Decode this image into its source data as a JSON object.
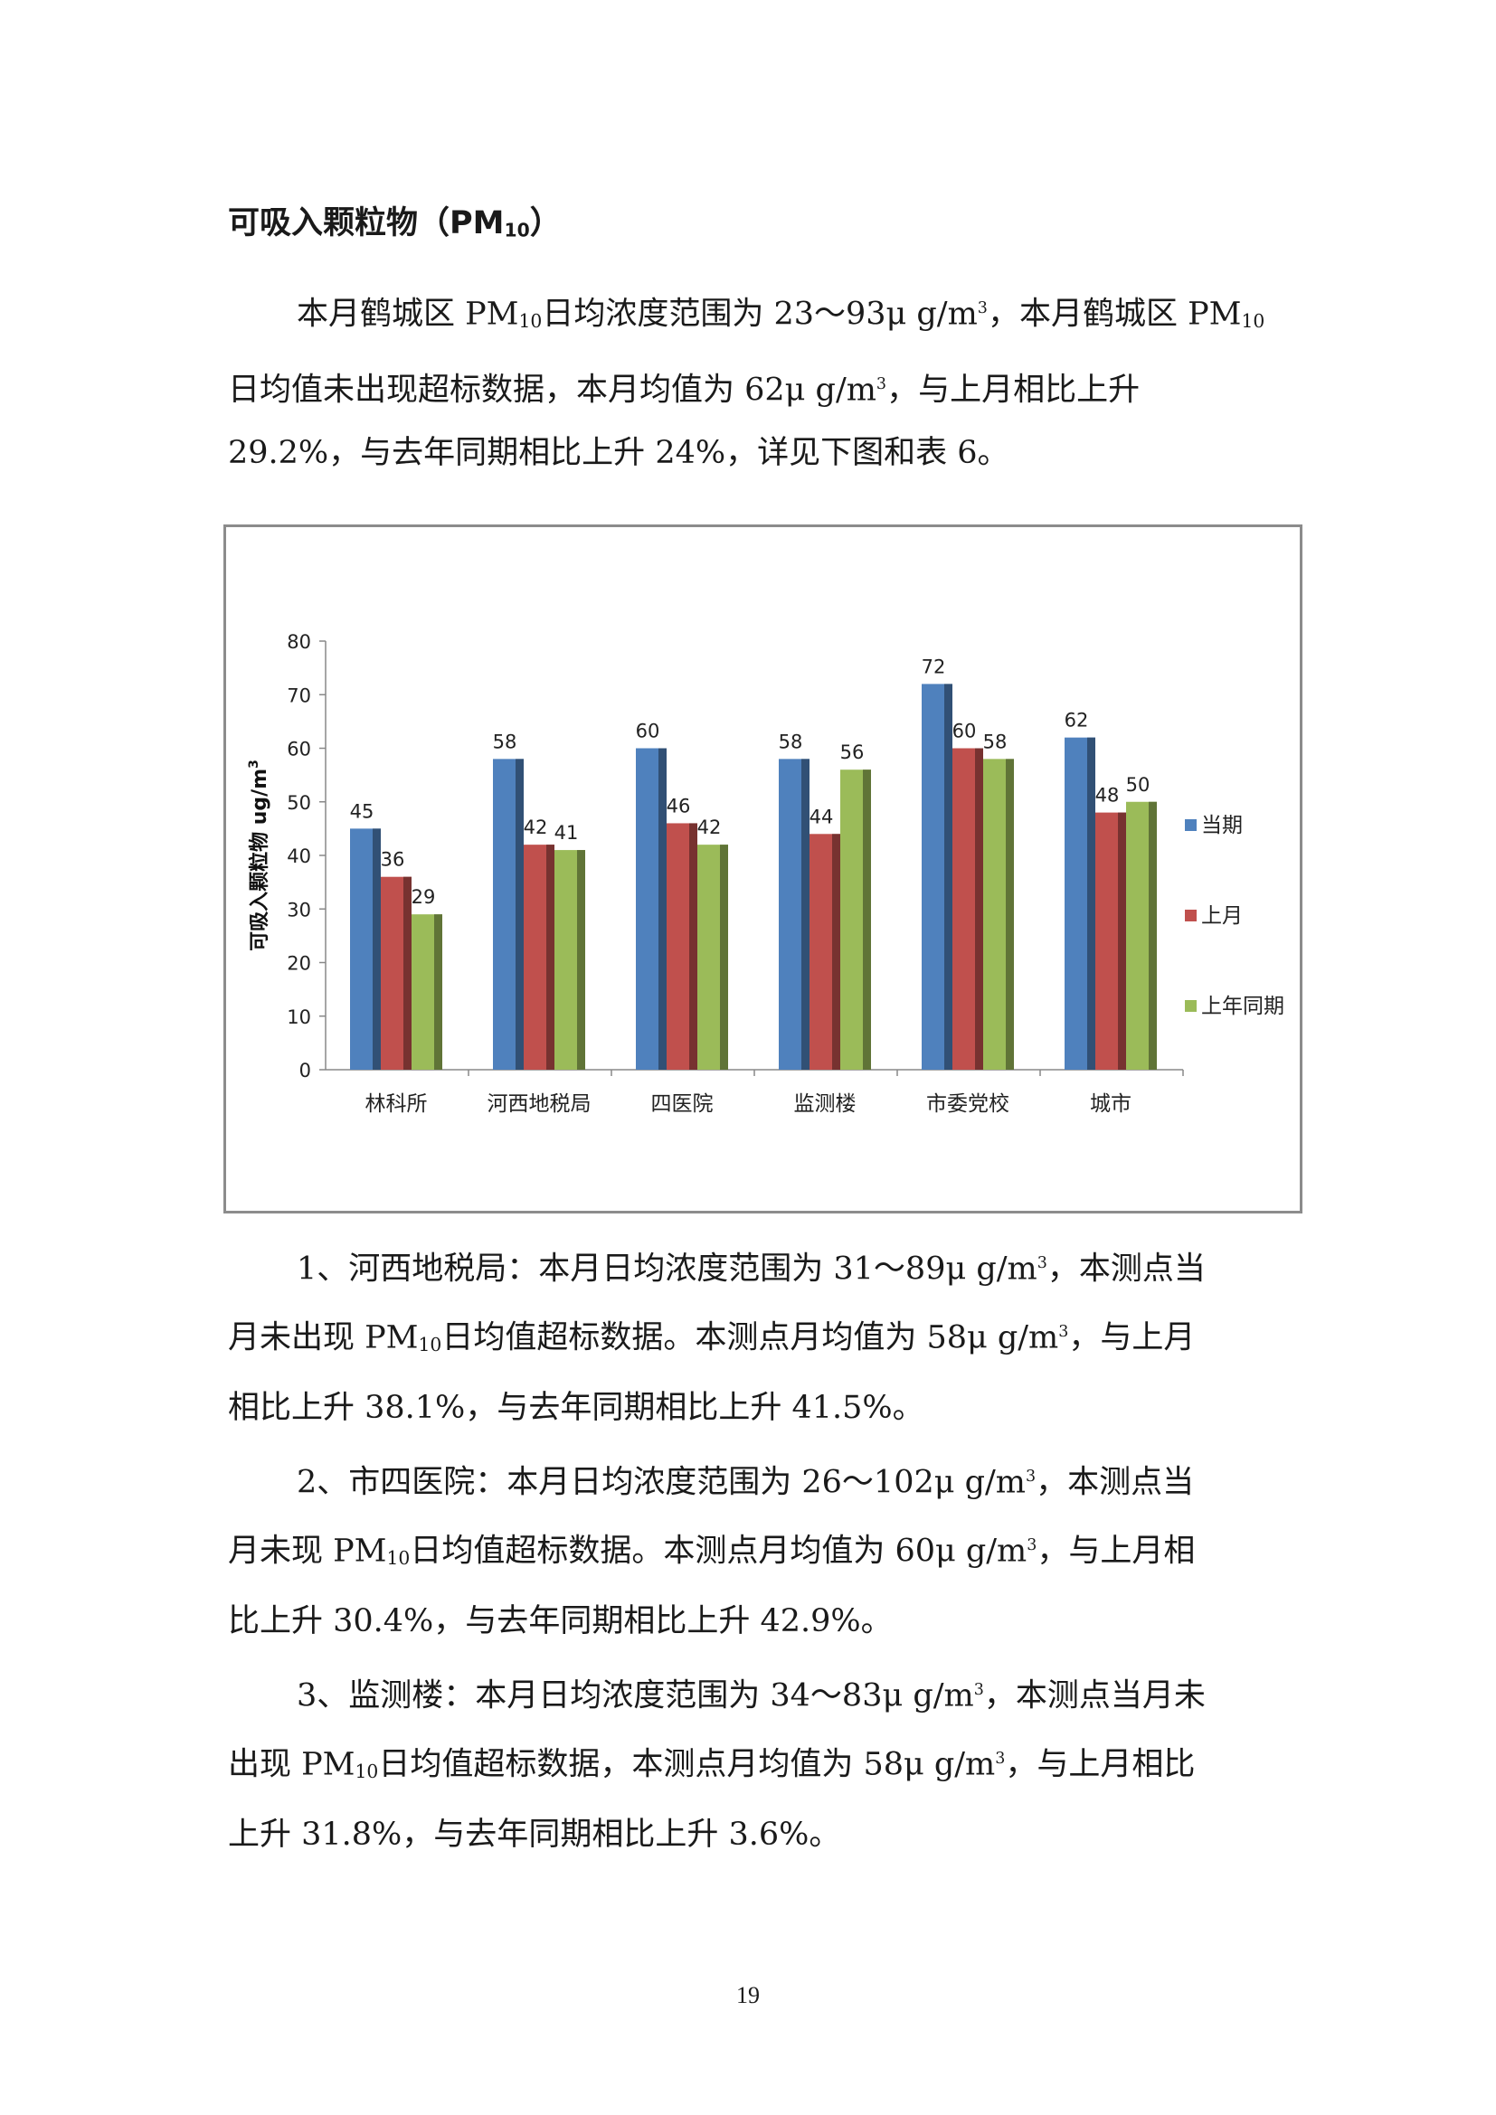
{
  "heading": {
    "text": "可吸入颗粒物（PM",
    "sub": "10",
    "close": "）"
  },
  "paragraphs": {
    "intro": [
      [
        "本月鹤城区 PM",
        {
          "sub": "10"
        },
        "日均浓度范围为 23～93μ g/m",
        {
          "sup": "3"
        },
        "，本月鹤城区 PM",
        {
          "sub": "10"
        }
      ],
      [
        "日均值未出现超标数据，本月均值为 62μ g/m",
        {
          "sup": "3"
        },
        "，与上月相比上升"
      ],
      [
        "29.2%，与去年同期相比上升 24%，详见下图和表 6。"
      ]
    ],
    "item1": [
      [
        "1、河西地税局：本月日均浓度范围为 31～89μ g/m",
        {
          "sup": "3"
        },
        "，本测点当"
      ],
      [
        "月未出现 PM",
        {
          "sub": "10"
        },
        "日均值超标数据。本测点月均值为 58μ g/m",
        {
          "sup": "3"
        },
        "，与上月"
      ],
      [
        "相比上升 38.1%，与去年同期相比上升 41.5%。"
      ]
    ],
    "item2": [
      [
        "2、市四医院：本月日均浓度范围为 26～102μ g/m",
        {
          "sup": "3"
        },
        "，本测点当"
      ],
      [
        "月未现 PM",
        {
          "sub": "10"
        },
        "日均值超标数据。本测点月均值为 60μ g/m",
        {
          "sup": "3"
        },
        "，与上月相"
      ],
      [
        "比上升 30.4%，与去年同期相比上升 42.9%。"
      ]
    ],
    "item3": [
      [
        "3、监测楼：本月日均浓度范围为 34～83μ g/m",
        {
          "sup": "3"
        },
        "，本测点当月未"
      ],
      [
        "出现 PM",
        {
          "sub": "10"
        },
        "日均值超标数据，本测点月均值为 58μ g/m",
        {
          "sup": "3"
        },
        "，与上月相比"
      ],
      [
        "上升 31.8%，与去年同期相比上升 3.6%。"
      ]
    ]
  },
  "chart_data": {
    "type": "bar",
    "title": "",
    "xlabel": "",
    "ylabel": "可吸入颗粒物 ug/m",
    "ylabel_sup": "3",
    "ylim": [
      0,
      80
    ],
    "yticks": [
      0,
      10,
      20,
      30,
      40,
      50,
      60,
      70,
      80
    ],
    "grid": false,
    "legend_position": "right",
    "categories": [
      "林科所",
      "河西地税局",
      "四医院",
      "监测楼",
      "市委党校",
      "城市"
    ],
    "series": [
      {
        "name": "当期",
        "color": "#4f81bd",
        "values": [
          45,
          58,
          60,
          58,
          72,
          62
        ]
      },
      {
        "name": "上月",
        "color": "#c0504d",
        "values": [
          36,
          42,
          46,
          44,
          60,
          48
        ]
      },
      {
        "name": "上年同期",
        "color": "#9bbb59",
        "values": [
          29,
          41,
          42,
          56,
          58,
          50
        ]
      }
    ]
  },
  "page_number": "19"
}
